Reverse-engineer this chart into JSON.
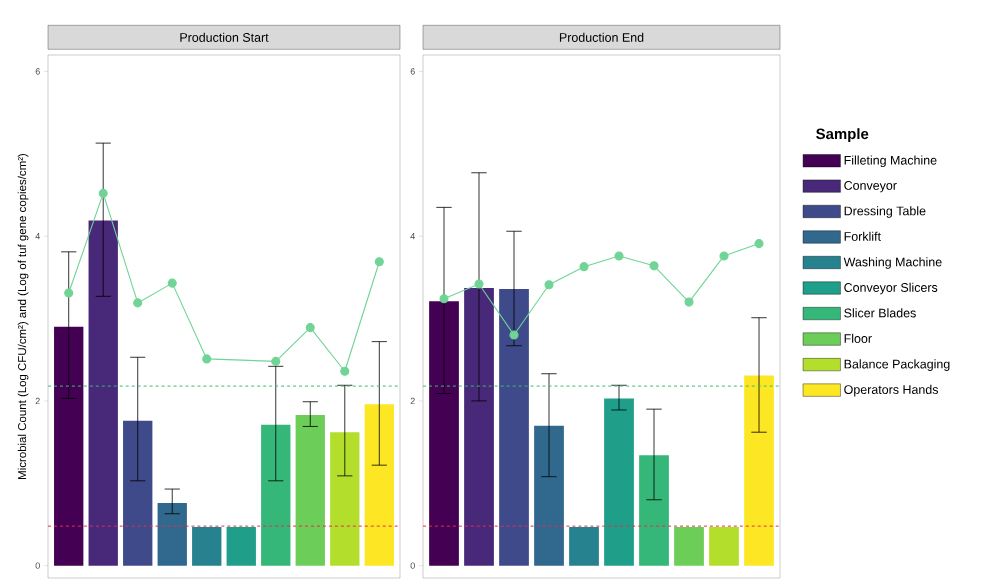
{
  "chart_data": [
    {
      "type": "bar",
      "title": "Production Start",
      "ylabel": "Microbial Count (Log CFU/cm²) and (Log of tuf gene copies/cm²)",
      "categories": [
        null,
        null,
        null,
        null,
        null,
        null,
        null,
        null,
        null,
        null
      ],
      "series": [
        {
          "color": "#440154",
          "values": [
            2.9,
            null,
            null,
            null,
            null,
            null,
            null,
            null,
            null,
            null
          ],
          "errors": [
            [
              2.03,
              3.81
            ],
            null,
            null,
            null,
            null,
            null,
            null,
            null,
            null,
            null
          ]
        },
        {
          "color": "#482878",
          "values": [
            null,
            4.19,
            null,
            null,
            null,
            null,
            null,
            null,
            null,
            null
          ],
          "errors": [
            null,
            [
              3.27,
              5.13
            ],
            null,
            null,
            null,
            null,
            null,
            null,
            null,
            null
          ]
        },
        {
          "color": "#3e4a89",
          "values": [
            null,
            null,
            1.76,
            null,
            null,
            null,
            null,
            null,
            null,
            null
          ],
          "errors": [
            null,
            null,
            [
              1.03,
              2.53
            ],
            null,
            null,
            null,
            null,
            null,
            null,
            null
          ]
        },
        {
          "color": "#31688e",
          "values": [
            null,
            null,
            null,
            0.76,
            null,
            null,
            null,
            null,
            null,
            null
          ],
          "errors": [
            null,
            null,
            null,
            [
              0.63,
              0.93
            ],
            null,
            null,
            null,
            null,
            null,
            null
          ]
        },
        {
          "color": "#26828e",
          "values": [
            null,
            null,
            null,
            null,
            0.47,
            null,
            null,
            null,
            null,
            null
          ]
        },
        {
          "color": "#1f9e89",
          "values": [
            null,
            null,
            null,
            null,
            null,
            0.47,
            null,
            null,
            null,
            null
          ]
        },
        {
          "color": "#35b779",
          "values": [
            null,
            null,
            null,
            null,
            null,
            null,
            1.71,
            null,
            null,
            null
          ],
          "errors": [
            null,
            null,
            null,
            null,
            null,
            null,
            [
              1.03,
              2.42
            ],
            null,
            null,
            null
          ]
        },
        {
          "color": "#6dcd59",
          "values": [
            null,
            null,
            null,
            null,
            null,
            null,
            null,
            1.83,
            null,
            null
          ],
          "errors": [
            null,
            null,
            null,
            null,
            null,
            null,
            null,
            [
              1.69,
              1.99
            ],
            null,
            null
          ]
        },
        {
          "color": "#b4de2c",
          "values": [
            null,
            null,
            null,
            null,
            null,
            null,
            null,
            null,
            1.62,
            null
          ],
          "errors": [
            null,
            null,
            null,
            null,
            null,
            null,
            null,
            null,
            [
              1.09,
              2.19
            ],
            null
          ]
        },
        {
          "color": "#fde725",
          "values": [
            null,
            null,
            null,
            null,
            null,
            null,
            null,
            null,
            null,
            1.96
          ],
          "errors": [
            null,
            null,
            null,
            null,
            null,
            null,
            null,
            null,
            null,
            [
              1.22,
              2.72
            ]
          ]
        },
        {
          "type": "line",
          "color": "#6fd495",
          "marker": "circle",
          "values": [
            3.31,
            4.52,
            3.19,
            3.43,
            2.51,
            null,
            2.48,
            2.89,
            2.36,
            3.69
          ]
        }
      ],
      "ylim": [
        -0.15,
        6.2
      ],
      "yticks": [
        0,
        2,
        4,
        6
      ],
      "ref_lines": [
        {
          "axis": "y",
          "value": 2.18,
          "color": "#3cbb75",
          "line_style": "dashed"
        },
        {
          "axis": "y",
          "value": 0.48,
          "color": "#e0324a",
          "line_style": "dashed"
        }
      ]
    },
    {
      "type": "bar",
      "title": "Production End",
      "legend_title": "Sample",
      "legend": "right",
      "categories": [
        null,
        null,
        null,
        null,
        null,
        null,
        null,
        null,
        null,
        null
      ],
      "series": [
        {
          "name": "Filleting Machine",
          "color": "#440154",
          "values": [
            3.21,
            null,
            null,
            null,
            null,
            null,
            null,
            null,
            null,
            null
          ],
          "errors": [
            [
              2.09,
              4.35
            ],
            null,
            null,
            null,
            null,
            null,
            null,
            null,
            null,
            null
          ]
        },
        {
          "name": "Conveyor",
          "color": "#482878",
          "values": [
            null,
            3.37,
            null,
            null,
            null,
            null,
            null,
            null,
            null,
            null
          ],
          "errors": [
            null,
            [
              2.0,
              4.77
            ],
            null,
            null,
            null,
            null,
            null,
            null,
            null,
            null
          ]
        },
        {
          "name": "Dressing Table",
          "color": "#3e4a89",
          "values": [
            null,
            null,
            3.36,
            null,
            null,
            null,
            null,
            null,
            null,
            null
          ],
          "errors": [
            null,
            null,
            [
              2.67,
              4.06
            ],
            null,
            null,
            null,
            null,
            null,
            null,
            null
          ]
        },
        {
          "name": "Forklift",
          "color": "#31688e",
          "values": [
            null,
            null,
            null,
            1.7,
            null,
            null,
            null,
            null,
            null,
            null
          ],
          "errors": [
            null,
            null,
            null,
            [
              1.08,
              2.33
            ],
            null,
            null,
            null,
            null,
            null,
            null
          ]
        },
        {
          "name": "Washing Machine",
          "color": "#26828e",
          "values": [
            null,
            null,
            null,
            null,
            0.47,
            null,
            null,
            null,
            null,
            null
          ]
        },
        {
          "name": "Conveyor Slicers",
          "color": "#1f9e89",
          "values": [
            null,
            null,
            null,
            null,
            null,
            2.03,
            null,
            null,
            null,
            null
          ],
          "errors": [
            null,
            null,
            null,
            null,
            null,
            [
              1.89,
              2.19
            ],
            null,
            null,
            null,
            null
          ]
        },
        {
          "name": "Slicer Blades",
          "color": "#35b779",
          "values": [
            null,
            null,
            null,
            null,
            null,
            null,
            1.34,
            null,
            null,
            null
          ],
          "errors": [
            null,
            null,
            null,
            null,
            null,
            null,
            [
              0.8,
              1.9
            ],
            null,
            null,
            null
          ]
        },
        {
          "name": "Floor",
          "color": "#6dcd59",
          "values": [
            null,
            null,
            null,
            null,
            null,
            null,
            null,
            0.47,
            null,
            null
          ]
        },
        {
          "name": "Balance Packaging",
          "color": "#b4de2c",
          "values": [
            null,
            null,
            null,
            null,
            null,
            null,
            null,
            null,
            0.47,
            null
          ]
        },
        {
          "name": "Operators Hands",
          "color": "#fde725",
          "values": [
            null,
            null,
            null,
            null,
            null,
            null,
            null,
            null,
            null,
            2.31
          ],
          "errors": [
            null,
            null,
            null,
            null,
            null,
            null,
            null,
            null,
            null,
            [
              1.62,
              3.01
            ]
          ]
        },
        {
          "type": "line",
          "color": "#6fd495",
          "marker": "circle",
          "values": [
            3.24,
            3.42,
            2.8,
            3.41,
            3.63,
            3.76,
            3.64,
            3.2,
            3.76,
            3.91
          ]
        }
      ],
      "ylim": [
        -0.15,
        6.2
      ],
      "yticks": [
        0,
        2,
        4,
        6
      ],
      "ref_lines": [
        {
          "axis": "y",
          "value": 2.18,
          "color": "#3cbb75",
          "line_style": "dashed"
        },
        {
          "axis": "y",
          "value": 0.48,
          "color": "#e0324a",
          "line_style": "dashed"
        }
      ]
    }
  ]
}
